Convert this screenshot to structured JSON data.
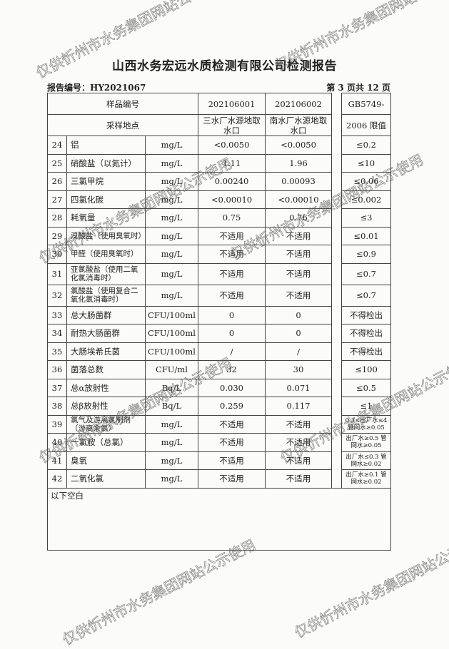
{
  "title": "山西水务宏远水质检测有限公司检测报告",
  "report_no": "报告编号：HY2021067",
  "page_info": "第 3 页共 12 页",
  "header": {
    "sample_no_label": "样品编号",
    "sample_site_label": "采样地点",
    "sample1_no": "202106001",
    "sample2_no": "202106002",
    "sample1_site": "三水厂水源地取水口",
    "sample2_site": "南水厂水源地取水口",
    "limit_label_1": "GB5749-",
    "limit_label_2": "2006 限值"
  },
  "rows": [
    {
      "no": "24",
      "name": "铝",
      "unit": "mg/L",
      "s1": "<0.0050",
      "s2": "<0.0050",
      "limit": "≤0.2"
    },
    {
      "no": "25",
      "name": "硝酸盐（以氮计）",
      "unit": "mg/L",
      "s1": "1.11",
      "s2": "1.96",
      "limit": "≤10"
    },
    {
      "no": "26",
      "name": "三氯甲烷",
      "unit": "mg/L",
      "s1": "0.00240",
      "s2": "0.00093",
      "limit": "≤0.06"
    },
    {
      "no": "27",
      "name": "四氯化碳",
      "unit": "mg/L",
      "s1": "<0.00010",
      "s2": "<0.00010",
      "limit": "≤0.002"
    },
    {
      "no": "28",
      "name": "耗氧量",
      "unit": "mg/L",
      "s1": "0.75",
      "s2": "0.76",
      "limit": "≤3"
    },
    {
      "no": "29",
      "name": "溴酸盐（使用臭氧时）",
      "unit": "mg/L",
      "s1": "不适用",
      "s2": "不适用",
      "limit": "≤0.01"
    },
    {
      "no": "30",
      "name": "甲醛（使用臭氧时）",
      "unit": "mg/L",
      "s1": "不适用",
      "s2": "不适用",
      "limit": "≤0.9"
    },
    {
      "no": "31",
      "name": "亚氯酸盐（使用二氧化氯消毒时）",
      "unit": "mg/L",
      "s1": "不适用",
      "s2": "不适用",
      "limit": "≤0.7"
    },
    {
      "no": "32",
      "name": "氯酸盐（使用复合二氧化氯消毒时）",
      "unit": "mg/L",
      "s1": "不适用",
      "s2": "不适用",
      "limit": "≤0.7"
    },
    {
      "no": "33",
      "name": "总大肠菌群",
      "unit": "CFU/100ml",
      "s1": "0",
      "s2": "0",
      "limit": "不得检出"
    },
    {
      "no": "34",
      "name": "耐热大肠菌群",
      "unit": "CFU/100ml",
      "s1": "0",
      "s2": "0",
      "limit": "不得检出"
    },
    {
      "no": "35",
      "name": "大肠埃希氏菌",
      "unit": "CFU/100ml",
      "s1": "/",
      "s2": "/",
      "limit": "不得检出"
    },
    {
      "no": "36",
      "name": "菌落总数",
      "unit": "CFU/ml",
      "s1": "32",
      "s2": "30",
      "limit": "≤100"
    },
    {
      "no": "37",
      "name": "总α放射性",
      "unit": "Bq/L",
      "s1": "0.030",
      "s2": "0.071",
      "limit": "≤0.5"
    },
    {
      "no": "38",
      "name": "总β放射性",
      "unit": "Bq/L",
      "s1": "0.259",
      "s2": "0.117",
      "limit": "≤1"
    },
    {
      "no": "39",
      "name": "氯气及游离氯制剂（游离余氯）",
      "unit": "mg/L",
      "s1": "不适用",
      "s2": "不适用",
      "limit": "0.3≤出厂水≤4 管网水≥0.05"
    },
    {
      "no": "40",
      "name": "一氯胺（总氯）",
      "unit": "mg/L",
      "s1": "不适用",
      "s2": "不适用",
      "limit": "出厂水≥0.5 管网水≥0.05"
    },
    {
      "no": "41",
      "name": "臭氧",
      "unit": "mg/L",
      "s1": "不适用",
      "s2": "不适用",
      "limit": "出厂水≤0.3 管网水≥0.02"
    },
    {
      "no": "42",
      "name": "二氧化氯",
      "unit": "mg/L",
      "s1": "不适用",
      "s2": "不适用",
      "limit": "出厂水≥0.1 管网水≥0.02"
    }
  ],
  "footer_note": "以下空白",
  "watermark": "仅供忻州市水务集团网站公示使用"
}
